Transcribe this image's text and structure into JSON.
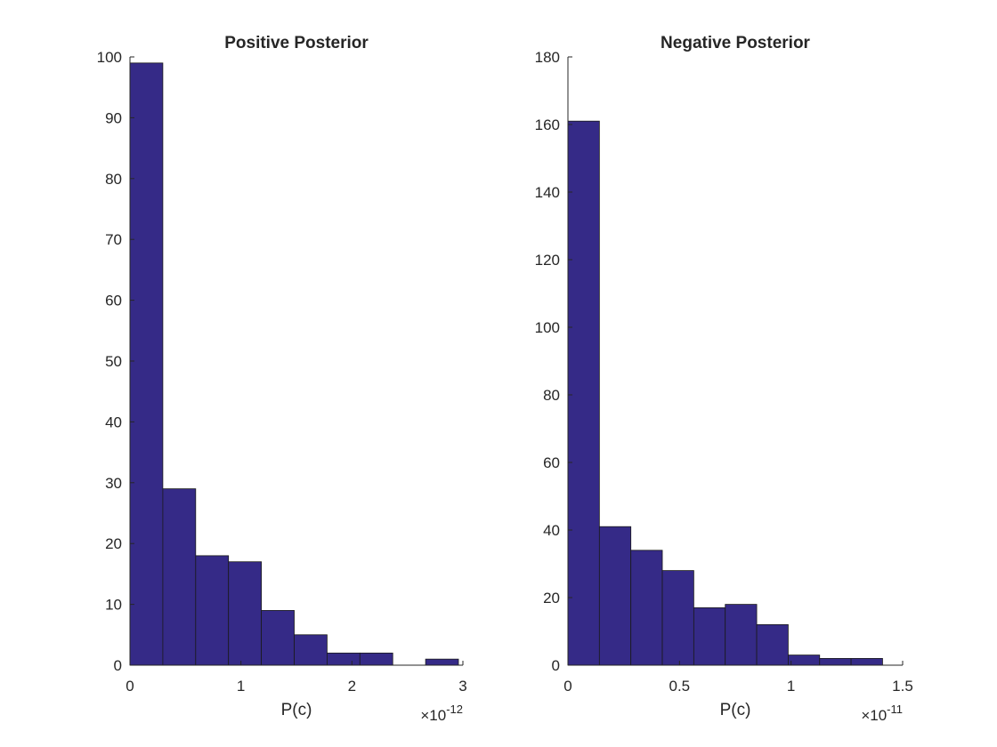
{
  "chart_data": [
    {
      "type": "bar",
      "title": "Positive Posterior",
      "xlabel": "P(c)",
      "ylabel": "",
      "x_multiplier_base": "×10",
      "x_multiplier_exp": "-12",
      "bin_edges": [
        0,
        0.296,
        0.592,
        0.888,
        1.184,
        1.48,
        1.776,
        2.072,
        2.368,
        2.664,
        2.96
      ],
      "values": [
        99,
        29,
        18,
        17,
        9,
        5,
        2,
        2,
        0,
        1
      ],
      "xlim": [
        0,
        3
      ],
      "ylim": [
        0,
        100
      ],
      "xticks": [
        0,
        1,
        2,
        3
      ],
      "xtick_labels": [
        "0",
        "1",
        "2",
        "3"
      ],
      "yticks": [
        0,
        10,
        20,
        30,
        40,
        50,
        60,
        70,
        80,
        90,
        100
      ],
      "ytick_labels": [
        "0",
        "10",
        "20",
        "30",
        "40",
        "50",
        "60",
        "70",
        "80",
        "90",
        "100"
      ],
      "bar_color": "#352a87",
      "grid": false
    },
    {
      "type": "bar",
      "title": "Negative Posterior",
      "xlabel": "P(c)",
      "ylabel": "",
      "x_multiplier_base": "×10",
      "x_multiplier_exp": "-11",
      "bin_edges": [
        0,
        0.141,
        0.282,
        0.423,
        0.564,
        0.705,
        0.846,
        0.987,
        1.128,
        1.269,
        1.41
      ],
      "values": [
        161,
        41,
        34,
        28,
        17,
        18,
        12,
        3,
        2,
        2
      ],
      "xlim": [
        0,
        1.5
      ],
      "ylim": [
        0,
        180
      ],
      "xticks": [
        0,
        0.5,
        1,
        1.5
      ],
      "xtick_labels": [
        "0",
        "0.5",
        "1",
        "1.5"
      ],
      "yticks": [
        0,
        20,
        40,
        60,
        80,
        100,
        120,
        140,
        160,
        180
      ],
      "ytick_labels": [
        "0",
        "20",
        "40",
        "60",
        "80",
        "100",
        "120",
        "140",
        "160",
        "180"
      ],
      "bar_color": "#352a87",
      "grid": false
    }
  ]
}
